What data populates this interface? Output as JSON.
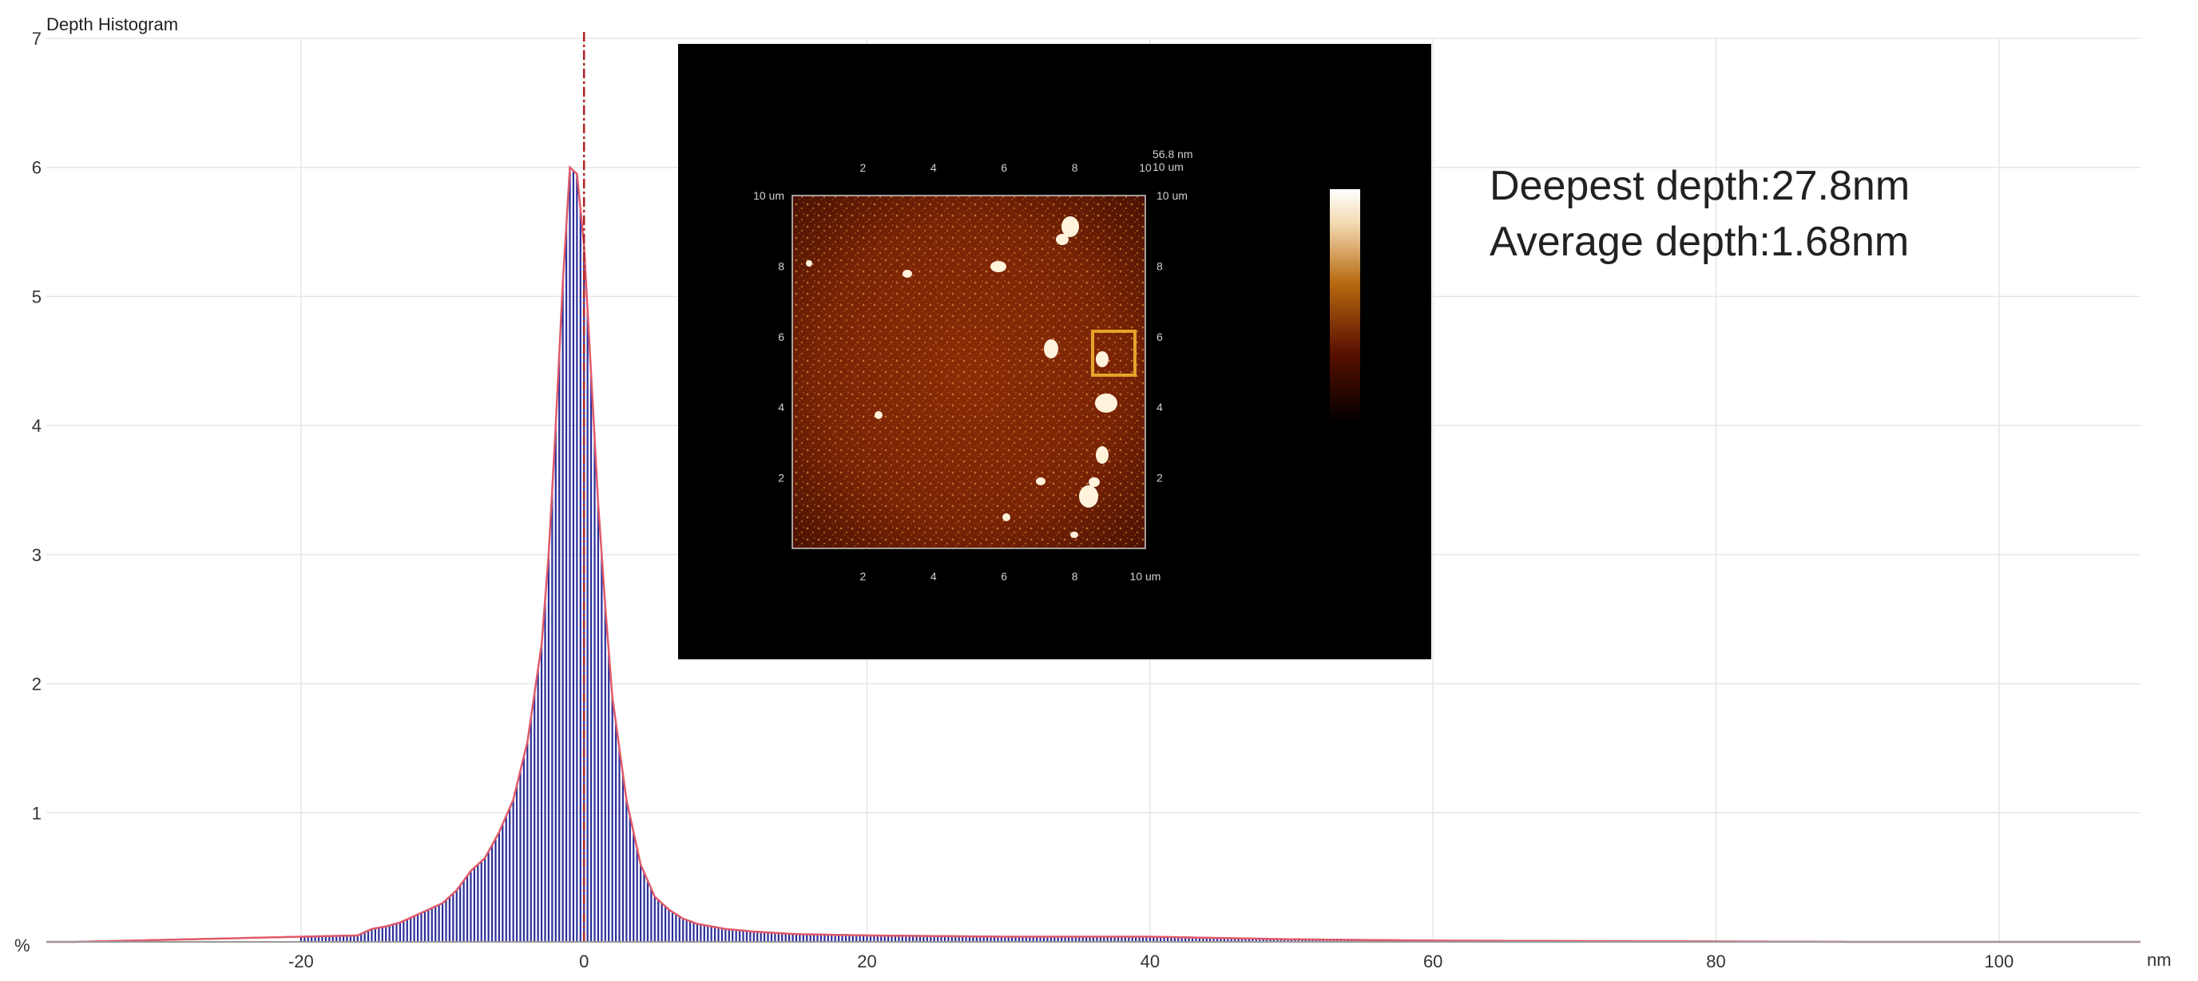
{
  "chart_data": {
    "type": "bar",
    "title": "Depth Histogram",
    "xlabel": "nm",
    "ylabel": "%",
    "xlim": [
      -38,
      110
    ],
    "ylim": [
      0,
      7
    ],
    "xticks": [
      -20,
      0,
      20,
      40,
      60,
      80,
      100
    ],
    "yticks": [
      1,
      2,
      3,
      4,
      5,
      6,
      7
    ],
    "grid": true,
    "bar_color": "#2b2d9a",
    "envelope_color": "#e05a6a",
    "marker_line": {
      "x": 0,
      "color": "#b22222",
      "style": "dash-dot"
    },
    "series": [
      {
        "x": [
          -16,
          -15,
          -14,
          -13,
          -12,
          -11,
          -10,
          -9,
          -8,
          -7,
          -6,
          -5,
          -4,
          -3,
          -2.5,
          -2,
          -1.5,
          -1,
          -0.5,
          0,
          0.5,
          1,
          1.5,
          2,
          3,
          4,
          5,
          6,
          7,
          8,
          10,
          12,
          15,
          20,
          30,
          40,
          50,
          60
        ],
        "values": [
          0.05,
          0.1,
          0.12,
          0.15,
          0.2,
          0.25,
          0.3,
          0.4,
          0.55,
          0.65,
          0.85,
          1.1,
          1.55,
          2.3,
          3.0,
          4.0,
          5.1,
          6.0,
          5.95,
          5.4,
          4.4,
          3.4,
          2.6,
          1.9,
          1.1,
          0.6,
          0.35,
          0.25,
          0.18,
          0.14,
          0.1,
          0.08,
          0.06,
          0.05,
          0.04,
          0.04,
          0.02,
          0.01
        ]
      }
    ]
  },
  "inset": {
    "top_ticks": [
      "2",
      "4",
      "6",
      "8",
      "10"
    ],
    "bottom_ticks": [
      "2",
      "4",
      "6",
      "8",
      "10 um"
    ],
    "left_ticks": [
      "10 um",
      "8",
      "6",
      "4",
      "2"
    ],
    "right_ticks": [
      "10 um",
      "8",
      "6",
      "4",
      "2"
    ],
    "scale_label": "56.8 nm",
    "corner_label": "10 um"
  },
  "stats": {
    "deepest": "Deepest depth:27.8nm",
    "average": "Average depth:1.68nm"
  }
}
